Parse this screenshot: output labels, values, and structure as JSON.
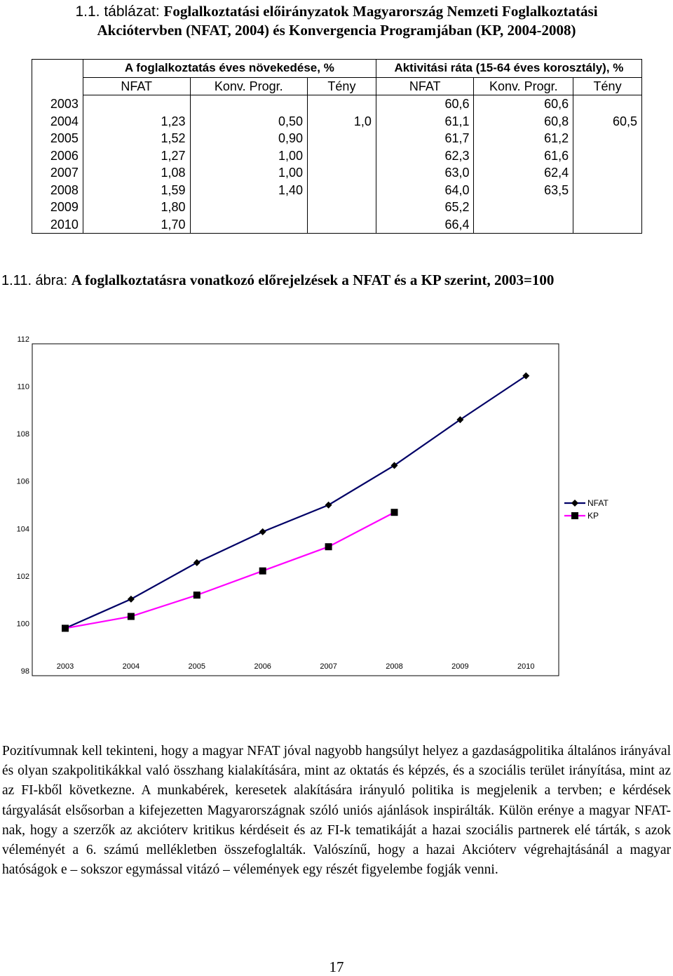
{
  "table_caption": {
    "prefix": "1.1. táblázat: ",
    "title_line1": "Foglalkoztatási előirányzatok Magyarország Nemzeti Foglalkoztatási",
    "title_line2": "Akciótervben (NFAT, 2004) és Konvergencia Programjában (KP, 2004-2008)"
  },
  "table": {
    "group_headers": [
      "A foglalkoztatás éves növekedése, %",
      "Aktivitási ráta (15-64 éves korosztály), %"
    ],
    "sub_headers": [
      "NFAT",
      "Konv. Progr.",
      "Tény",
      "NFAT",
      "Konv. Progr.",
      "Tény"
    ],
    "rows": [
      {
        "year": "2003",
        "cells": [
          "",
          "",
          "",
          "60,6",
          "60,6",
          ""
        ]
      },
      {
        "year": "2004",
        "cells": [
          "1,23",
          "0,50",
          "1,0",
          "61,1",
          "60,8",
          "60,5"
        ]
      },
      {
        "year": "2005",
        "cells": [
          "1,52",
          "0,90",
          "",
          "61,7",
          "61,2",
          ""
        ]
      },
      {
        "year": "2006",
        "cells": [
          "1,27",
          "1,00",
          "",
          "62,3",
          "61,6",
          ""
        ]
      },
      {
        "year": "2007",
        "cells": [
          "1,08",
          "1,00",
          "",
          "63,0",
          "62,4",
          ""
        ]
      },
      {
        "year": "2008",
        "cells": [
          "1,59",
          "1,40",
          "",
          "64,0",
          "63,5",
          ""
        ]
      },
      {
        "year": "2009",
        "cells": [
          "1,80",
          "",
          "",
          "65,2",
          "",
          ""
        ]
      },
      {
        "year": "2010",
        "cells": [
          "1,70",
          "",
          "",
          "66,4",
          "",
          ""
        ]
      }
    ]
  },
  "figure_caption": {
    "prefix": "1.11. ábra: ",
    "title": "A foglalkoztatásra vonatkozó előrejelzések a NFAT és a KP szerint, 2003=100"
  },
  "chart_data": {
    "type": "line",
    "title": "",
    "xlabel": "",
    "ylabel": "",
    "x": [
      "2003",
      "2004",
      "2005",
      "2006",
      "2007",
      "2008",
      "2009",
      "2010"
    ],
    "ylim": [
      98,
      112
    ],
    "yticks": [
      "98",
      "100",
      "102",
      "104",
      "106",
      "108",
      "110",
      "112"
    ],
    "grid": false,
    "legend_position": "right",
    "series": [
      {
        "name": "NFAT",
        "color": "#000066",
        "marker": "diamond",
        "values": [
          100,
          101.23,
          102.77,
          104.07,
          105.2,
          106.87,
          108.8,
          110.65
        ]
      },
      {
        "name": "KP",
        "color": "#ff00ff",
        "marker": "square",
        "values": [
          100,
          100.5,
          101.4,
          102.42,
          103.44,
          104.89,
          null,
          null
        ]
      }
    ]
  },
  "body_text": "Pozitívumnak kell tekinteni, hogy a magyar NFAT jóval nagyobb hangsúlyt helyez a gazdaságpolitika általános irányával és olyan szakpolitikákkal való összhang kialakítására, mint az oktatás és képzés, és a szociális terület irányítása, mint az az FI-kből következne. A munkabérek, keresetek alakítására irányuló politika is megjelenik a tervben; e kérdések tárgyalását elsősorban a kifejezetten Magyarországnak szóló uniós ajánlások inspirálták. Külön erénye a magyar NFAT-nak, hogy a szerzők az akcióterv kritikus kérdéseit és az FI-k tematikáját a hazai szociális partnerek elé tárták, s azok véleményét a 6. számú mellékletben összefoglalták. Valószínű, hogy a hazai Akcióterv végrehajtásánál a magyar hatóságok e – sokszor egymással vitázó – vélemények egy részét figyelembe fogják venni.",
  "page_number": "17"
}
